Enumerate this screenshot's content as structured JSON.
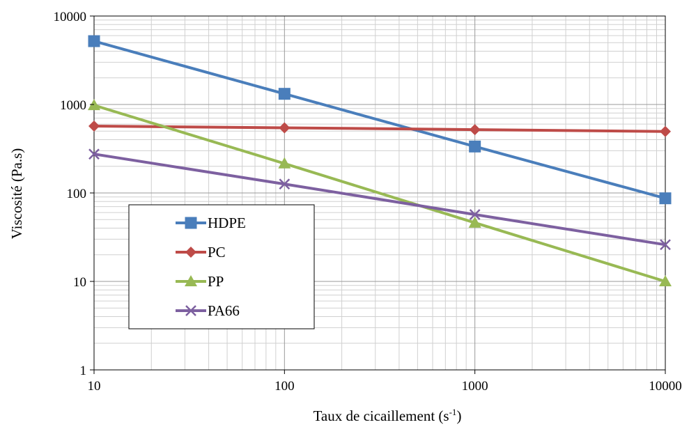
{
  "chart_data": {
    "type": "line",
    "title": "",
    "xlabel": "Taux de cicaillement (s",
    "xlabel_sup": "-1",
    "xlabel_end": ")",
    "ylabel": "Viscosité (Pa.s)",
    "xscale": "log",
    "yscale": "log",
    "xlim": [
      10,
      10000
    ],
    "ylim": [
      1,
      10000
    ],
    "x_ticks": [
      "10",
      "100",
      "1000",
      "10000"
    ],
    "y_ticks": [
      "1",
      "10",
      "100",
      "1000",
      "10000"
    ],
    "grid": true,
    "legend_position": "bottom-left",
    "x": [
      10,
      100,
      1000,
      10000
    ],
    "series": [
      {
        "name": "HDPE",
        "values": [
          5200,
          1320,
          335,
          87
        ],
        "color": "#4a7ebb",
        "marker": "square"
      },
      {
        "name": "PC",
        "values": [
          570,
          545,
          520,
          495
        ],
        "color": "#be4b48",
        "marker": "diamond"
      },
      {
        "name": "PP",
        "values": [
          980,
          215,
          46,
          10
        ],
        "color": "#98b954",
        "marker": "triangle"
      },
      {
        "name": "PA66",
        "values": [
          275,
          126,
          57,
          26
        ],
        "color": "#7d60a0",
        "marker": "x"
      }
    ]
  }
}
